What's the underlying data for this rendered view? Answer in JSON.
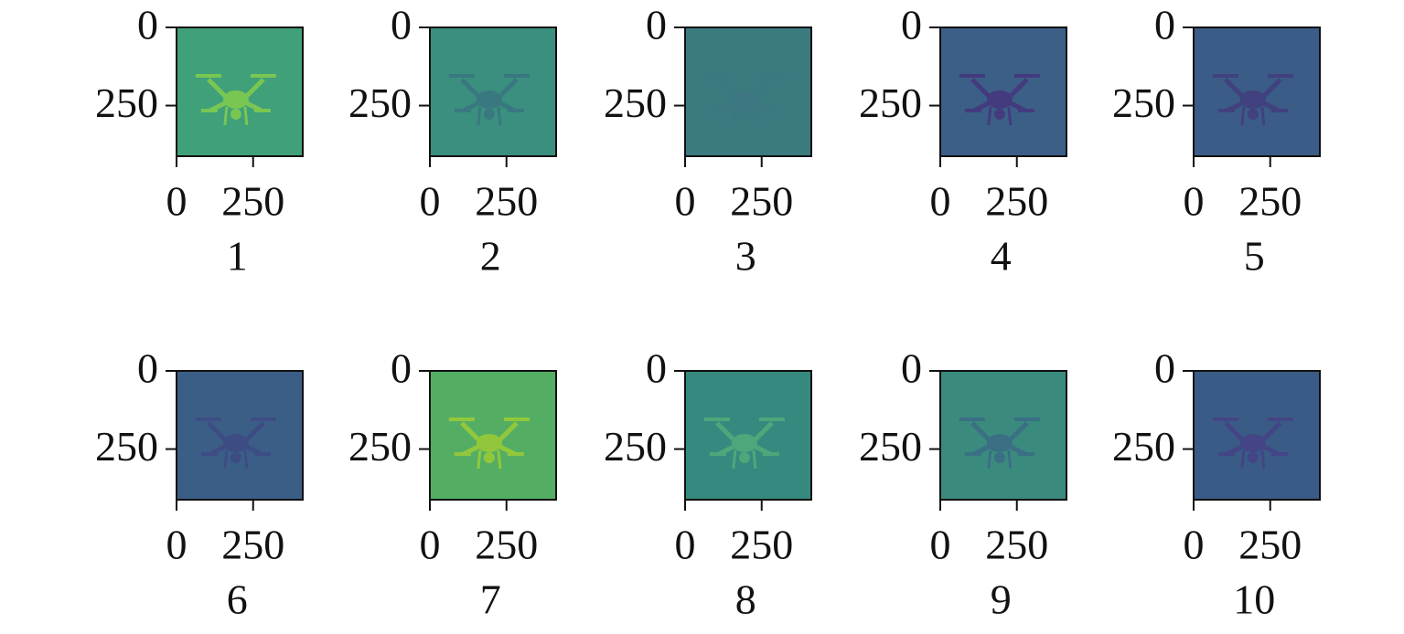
{
  "chart_data": [
    {
      "type": "image",
      "xlabel": "1",
      "xlim": [
        0,
        412
      ],
      "ylim": [
        412,
        0
      ],
      "xticks": [
        0,
        250
      ],
      "yticks": [
        0,
        250
      ],
      "color": "#3fa07a",
      "drone_color": "#79c653"
    },
    {
      "type": "image",
      "xlabel": "2",
      "xlim": [
        0,
        412
      ],
      "ylim": [
        412,
        0
      ],
      "xticks": [
        0,
        250
      ],
      "yticks": [
        0,
        250
      ],
      "color": "#3a8f7e",
      "drone_color": "#3a7881"
    },
    {
      "type": "image",
      "xlabel": "3",
      "xlim": [
        0,
        412
      ],
      "ylim": [
        412,
        0
      ],
      "xticks": [
        0,
        250
      ],
      "yticks": [
        0,
        250
      ],
      "color": "#3b7b80",
      "drone_color": "#3c7782"
    },
    {
      "type": "image",
      "xlabel": "4",
      "xlim": [
        0,
        412
      ],
      "ylim": [
        412,
        0
      ],
      "xticks": [
        0,
        250
      ],
      "yticks": [
        0,
        250
      ],
      "color": "#3b5f86",
      "drone_color": "#443b7f"
    },
    {
      "type": "image",
      "xlabel": "5",
      "xlim": [
        0,
        412
      ],
      "ylim": [
        412,
        0
      ],
      "xticks": [
        0,
        250
      ],
      "yticks": [
        0,
        250
      ],
      "color": "#3b5c87",
      "drone_color": "#41417f"
    },
    {
      "type": "image",
      "xlabel": "6",
      "xlim": [
        0,
        412
      ],
      "ylim": [
        412,
        0
      ],
      "xticks": [
        0,
        250
      ],
      "yticks": [
        0,
        250
      ],
      "color": "#3b5e87",
      "drone_color": "#3d4d84"
    },
    {
      "type": "image",
      "xlabel": "7",
      "xlim": [
        0,
        412
      ],
      "ylim": [
        412,
        0
      ],
      "xticks": [
        0,
        250
      ],
      "yticks": [
        0,
        250
      ],
      "color": "#53ae64",
      "drone_color": "#93c73b"
    },
    {
      "type": "image",
      "xlabel": "8",
      "xlim": [
        0,
        412
      ],
      "ylim": [
        412,
        0
      ],
      "xticks": [
        0,
        250
      ],
      "yticks": [
        0,
        250
      ],
      "color": "#36897e",
      "drone_color": "#4da77a"
    },
    {
      "type": "image",
      "xlabel": "9",
      "xlim": [
        0,
        412
      ],
      "ylim": [
        412,
        0
      ],
      "xticks": [
        0,
        250
      ],
      "yticks": [
        0,
        250
      ],
      "color": "#3a8b7e",
      "drone_color": "#3a6f84"
    },
    {
      "type": "image",
      "xlabel": "10",
      "xlim": [
        0,
        412
      ],
      "ylim": [
        412,
        0
      ],
      "xticks": [
        0,
        250
      ],
      "yticks": [
        0,
        250
      ],
      "color": "#3b5b87",
      "drone_color": "#434586"
    }
  ]
}
